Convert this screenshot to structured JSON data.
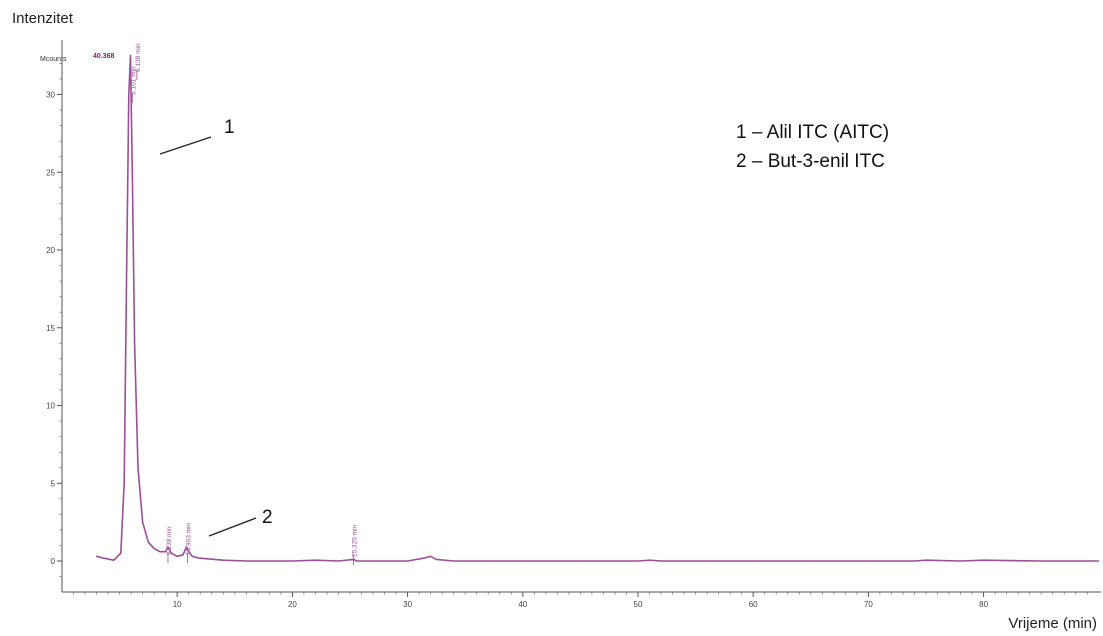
{
  "chart_data": {
    "type": "line",
    "ylabel": "Intenzitet",
    "yunit": "Mcounts",
    "xlabel": "Vrijeme (min)",
    "xlim": [
      0,
      90
    ],
    "ylim": [
      -1.5,
      33
    ],
    "xticks": [
      10,
      20,
      30,
      40,
      50,
      60,
      70,
      80
    ],
    "yticks": [
      0,
      5,
      10,
      15,
      20,
      25,
      30
    ],
    "series": [
      {
        "color": "#9b4f96",
        "x": [
          3.0,
          3.5,
          4.5,
          5.1,
          5.4,
          5.6,
          5.8,
          5.95,
          6.0,
          6.1,
          6.3,
          6.6,
          7.0,
          7.5,
          8.0,
          8.5,
          9.0,
          9.2,
          9.5,
          10.0,
          10.5,
          10.8,
          11.0,
          11.3,
          11.8,
          12.5,
          14.0,
          16.0,
          20.0,
          22.0,
          24.0,
          25.3,
          25.6,
          27.0,
          30.0,
          31.5,
          32.0,
          32.5,
          34.0,
          37.0,
          40.0,
          45.0,
          50.0,
          51.0,
          52.0,
          56.0,
          60.0,
          65.0,
          70.0,
          74.0,
          75.0,
          78.0,
          80.0,
          85.0,
          90.0
        ],
        "y": [
          0.3,
          0.2,
          0.05,
          0.5,
          5,
          18,
          30,
          32.5,
          30,
          25,
          14,
          6,
          2.5,
          1.2,
          0.8,
          0.6,
          0.6,
          0.9,
          0.5,
          0.3,
          0.4,
          0.9,
          0.6,
          0.3,
          0.2,
          0.15,
          0.05,
          0.0,
          0.0,
          0.05,
          0.0,
          0.1,
          0.0,
          0.0,
          0.0,
          0.2,
          0.3,
          0.1,
          0.0,
          0.0,
          0.0,
          0.0,
          0.0,
          0.05,
          0.0,
          0.0,
          0.0,
          0.0,
          0.0,
          0.0,
          0.05,
          0.0,
          0.05,
          0.0,
          0.0
        ]
      }
    ],
    "peak_labels": [
      {
        "x": 5.9,
        "text": "40.368",
        "color": "#7a1f6e"
      },
      {
        "x": 6.1,
        "text": "5.101 min"
      },
      {
        "x": 6.5,
        "text": "6.138 min"
      },
      {
        "x": 9.2,
        "text": "9.239 min"
      },
      {
        "x": 10.9,
        "text": "10.963 min"
      },
      {
        "x": 25.3,
        "text": "25.325 min"
      }
    ],
    "annotations": [
      {
        "peak": "1",
        "text": "1",
        "x": 6.0
      },
      {
        "peak": "2",
        "text": "2",
        "x": 10.9
      }
    ],
    "legend": [
      "1 – Alil ITC (AITC)",
      "2 – But-3-enil ITC"
    ],
    "grid": false
  }
}
